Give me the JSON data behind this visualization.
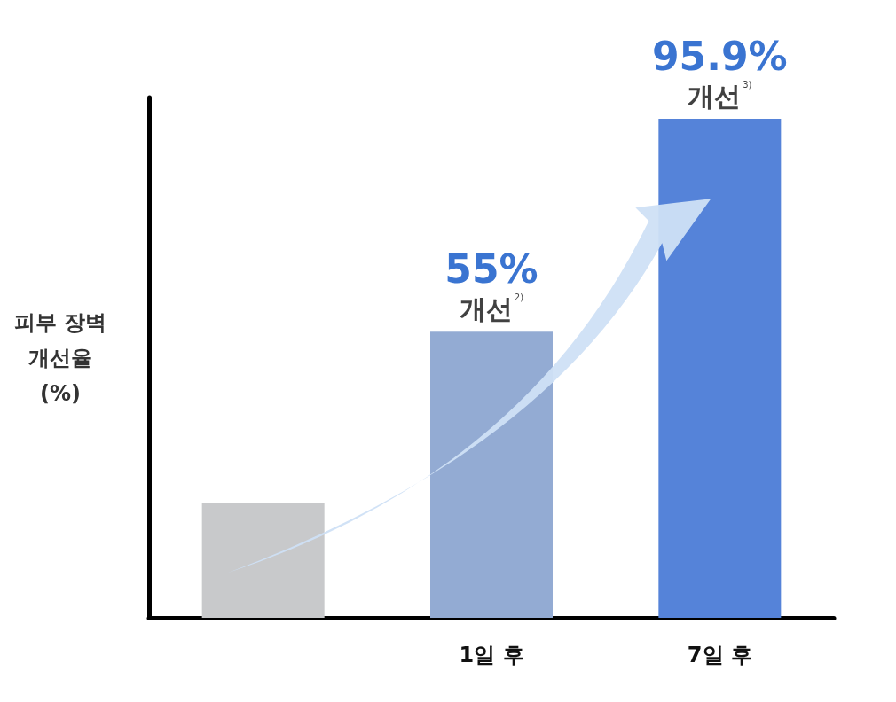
{
  "chart_data": {
    "type": "bar",
    "ylabel": "피부 장벽\n개선율\n(%)",
    "categories": [
      null,
      "1일 후",
      "7일 후"
    ],
    "values": [
      22,
      55,
      95.9
    ],
    "colors": [
      "#c8c9cb",
      "#93abd3",
      "#5583d9"
    ],
    "value_labels": [
      null,
      "55%",
      "95.9%"
    ],
    "annotations": [
      {
        "text": "개선$^{2)}$",
        "x": "1일 후",
        "y": 55
      },
      {
        "text": "개선$^{3)}$",
        "x": "7일 후",
        "y": 95.9
      }
    ],
    "tick_labels": "x",
    "grid": false
  }
}
